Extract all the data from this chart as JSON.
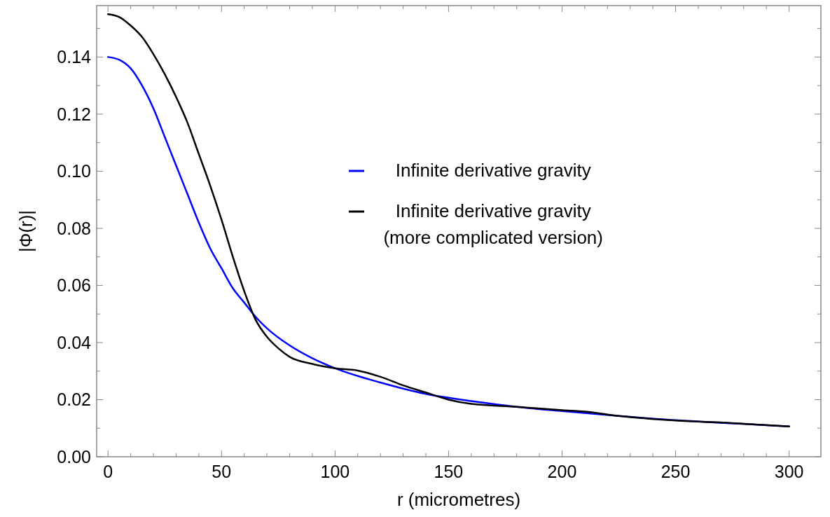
{
  "chart_data": {
    "type": "line",
    "xlabel": "r (micrometres)",
    "ylabel": "|Φ(r)|",
    "xlim": [
      -5,
      314
    ],
    "ylim": [
      0,
      0.158
    ],
    "xticks": [
      0,
      50,
      100,
      150,
      200,
      250,
      300,
      {
        "value": 10,
        "label": null
      },
      {
        "value": 20,
        "label": null
      },
      {
        "value": 30,
        "label": null
      },
      {
        "value": 40,
        "label": null
      },
      {
        "value": 60,
        "label": null
      },
      {
        "value": 70,
        "label": null
      },
      {
        "value": 80,
        "label": null
      },
      {
        "value": 90,
        "label": null
      },
      {
        "value": 110,
        "label": null
      },
      {
        "value": 120,
        "label": null
      },
      {
        "value": 130,
        "label": null
      },
      {
        "value": 140,
        "label": null
      },
      {
        "value": 160,
        "label": null
      },
      {
        "value": 170,
        "label": null
      },
      {
        "value": 180,
        "label": null
      },
      {
        "value": 190,
        "label": null
      },
      {
        "value": 210,
        "label": null
      },
      {
        "value": 220,
        "label": null
      },
      {
        "value": 230,
        "label": null
      },
      {
        "value": 240,
        "label": null
      },
      {
        "value": 260,
        "label": null
      },
      {
        "value": 270,
        "label": null
      },
      {
        "value": 280,
        "label": null
      },
      {
        "value": 290,
        "label": null
      }
    ],
    "yticks": [
      {
        "value": 0,
        "label": "0.00"
      },
      {
        "value": 0.02,
        "label": "0.02"
      },
      {
        "value": 0.04,
        "label": "0.04"
      },
      {
        "value": 0.06,
        "label": "0.06"
      },
      {
        "value": 0.08,
        "label": "0.08"
      },
      {
        "value": 0.1,
        "label": "0.10"
      },
      {
        "value": 0.12,
        "label": "0.12"
      },
      {
        "value": 0.14,
        "label": "0.14"
      },
      {
        "value": 0.01,
        "label": null
      },
      {
        "value": 0.03,
        "label": null
      },
      {
        "value": 0.05,
        "label": null
      },
      {
        "value": 0.07,
        "label": null
      },
      {
        "value": 0.09,
        "label": null
      },
      {
        "value": 0.11,
        "label": null
      },
      {
        "value": 0.13,
        "label": null
      },
      {
        "value": 0.15,
        "label": null
      }
    ],
    "grid": false,
    "legend": "right",
    "marker": "none",
    "line_style": "solid",
    "series": [
      {
        "name": "Infinite derivative gravity",
        "color": "#0000ff",
        "x": [
          0,
          5,
          10,
          15,
          20,
          25,
          30,
          35,
          40,
          45,
          50,
          55,
          60,
          65,
          70,
          80,
          90,
          100,
          120,
          140,
          160,
          180,
          200,
          225,
          250,
          275,
          300
        ],
        "values": [
          0.14,
          0.139,
          0.136,
          0.13,
          0.122,
          0.112,
          0.102,
          0.092,
          0.082,
          0.073,
          0.066,
          0.059,
          0.054,
          0.049,
          0.045,
          0.039,
          0.0345,
          0.031,
          0.026,
          0.022,
          0.0195,
          0.0175,
          0.016,
          0.0143,
          0.0128,
          0.0117,
          0.0106
        ]
      },
      {
        "name": "Infinite derivative gravity (more complicated version)",
        "color": "#000000",
        "x": [
          0,
          5,
          10,
          15,
          20,
          25,
          30,
          35,
          40,
          45,
          50,
          55,
          60,
          65,
          70,
          75,
          80,
          90,
          100,
          110,
          120,
          130,
          140,
          150,
          160,
          180,
          200,
          210,
          225,
          250,
          275,
          300
        ],
        "values": [
          0.155,
          0.154,
          0.151,
          0.147,
          0.141,
          0.134,
          0.126,
          0.117,
          0.106,
          0.095,
          0.083,
          0.07,
          0.058,
          0.048,
          0.042,
          0.038,
          0.035,
          0.0325,
          0.031,
          0.0302,
          0.028,
          0.025,
          0.0225,
          0.02,
          0.0185,
          0.0175,
          0.0163,
          0.0158,
          0.0143,
          0.0127,
          0.0118,
          0.0106
        ]
      }
    ]
  }
}
